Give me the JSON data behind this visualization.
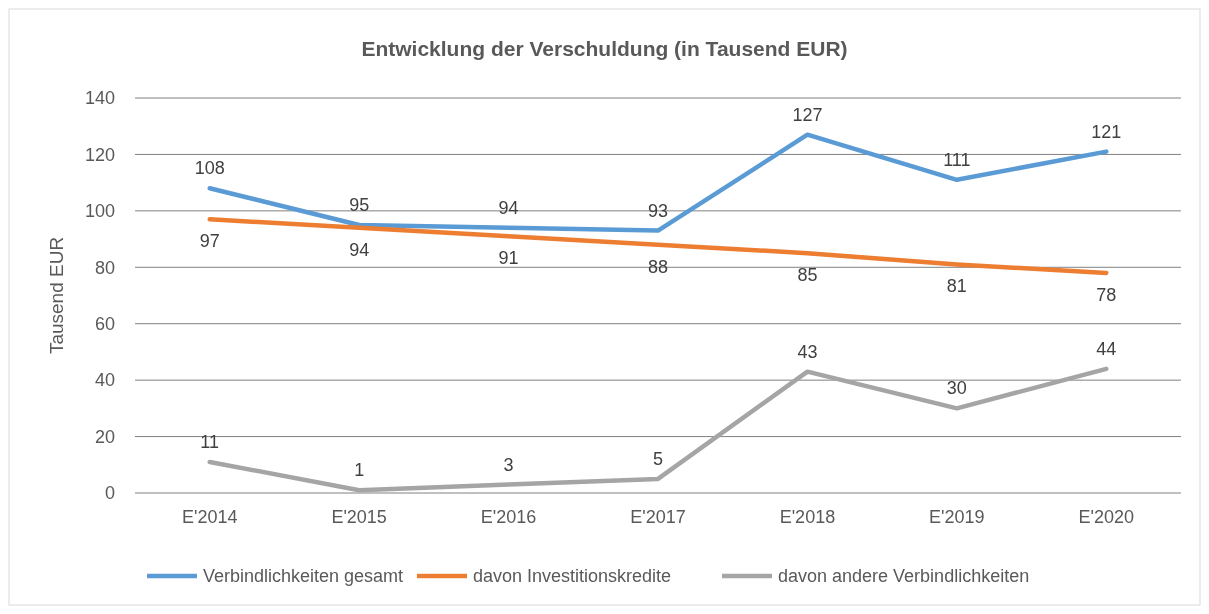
{
  "chart_data": {
    "type": "line",
    "title": "Entwicklung der Verschuldung (in Tausend EUR)",
    "ylabel": "Tausend EUR",
    "categories": [
      "E'2014",
      "E'2015",
      "E'2016",
      "E'2017",
      "E'2018",
      "E'2019",
      "E'2020"
    ],
    "series": [
      {
        "name": "Verbindlichkeiten gesamt",
        "color": "#5b9bd5",
        "values": [
          108,
          95,
          94,
          93,
          127,
          111,
          121
        ]
      },
      {
        "name": "davon Investitionskredite",
        "color": "#ed7d31",
        "values": [
          97,
          94,
          91,
          88,
          85,
          81,
          78
        ]
      },
      {
        "name": "davon andere Verbindlichkeiten",
        "color": "#a5a5a5",
        "values": [
          11,
          1,
          3,
          5,
          43,
          30,
          44
        ]
      }
    ],
    "ylim": [
      0,
      140
    ],
    "yticks": [
      0,
      20,
      40,
      60,
      80,
      100,
      120,
      140
    ],
    "grid": "y",
    "legend": "bottom",
    "data_labels": true,
    "marker": "none",
    "line_style": "solid"
  }
}
